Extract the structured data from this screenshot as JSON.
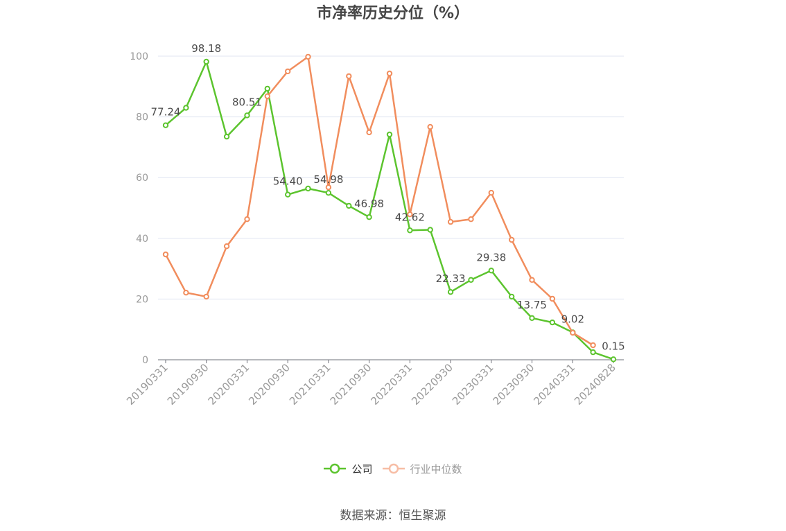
{
  "source": "数据来源：恒生聚源",
  "chart_data": {
    "type": "line",
    "title": "市净率历史分位（%）",
    "x": [
      "20190331",
      "",
      "20190930",
      "",
      "20200331",
      "",
      "20200930",
      "",
      "20210331",
      "",
      "20210930",
      "",
      "20220331",
      "",
      "20220930",
      "",
      "20230331",
      "",
      "20230930",
      "",
      "20240331",
      "",
      "20240828"
    ],
    "y_ticks": [
      0,
      20,
      40,
      60,
      80,
      100
    ],
    "ylim": [
      0,
      100
    ],
    "grid": "horizontal",
    "legend": "bottom",
    "series": [
      {
        "name": "公司",
        "color": "#5cc42e",
        "legend_color": "#5cc42e",
        "values": [
          77.24,
          83.0,
          98.18,
          73.5,
          80.51,
          89.3,
          54.4,
          56.4,
          54.98,
          50.7,
          46.98,
          74.2,
          42.62,
          42.8,
          22.33,
          26.3,
          29.38,
          20.8,
          13.75,
          12.3,
          9.02,
          2.5,
          0.15
        ],
        "data_labels": [
          "77.24",
          "",
          "98.18",
          "",
          "80.51",
          "",
          "54.40",
          "",
          "54.98",
          "",
          "46.98",
          "",
          "42.62",
          "",
          "22.33",
          "",
          "29.38",
          "",
          "13.75",
          "",
          "9.02",
          "",
          "0.15"
        ]
      },
      {
        "name": "行业中位数",
        "color": "#f18d5d",
        "legend_color": "#f7bda5",
        "values": [
          34.7,
          22.1,
          20.8,
          37.4,
          46.3,
          86.8,
          95.0,
          99.8,
          56.8,
          93.4,
          74.9,
          94.3,
          47.9,
          76.7,
          45.4,
          46.3,
          55.0,
          39.5,
          26.3,
          20.1,
          8.9,
          4.8,
          null
        ]
      }
    ]
  }
}
